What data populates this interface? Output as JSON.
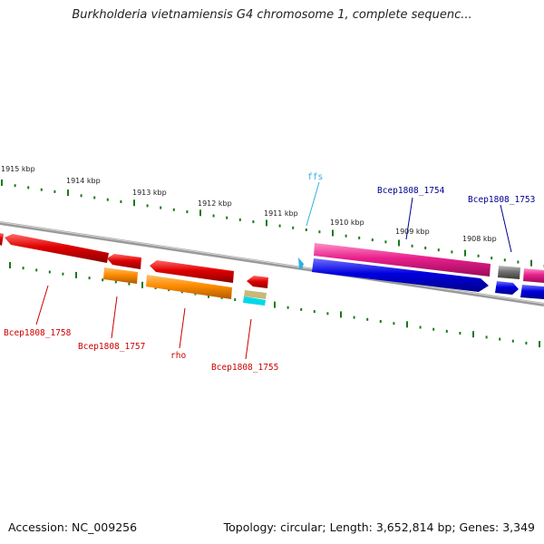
{
  "title": "Burkholderia vietnamiensis G4 chromosome 1, complete sequenc...",
  "footer": {
    "accession": "Accession: NC_009256",
    "summary": "Topology: circular; Length: 3,652,814 bp; Genes: 3,349"
  },
  "ruler": [
    "1915 kbp",
    "1914 kbp",
    "1913 kbp",
    "1912 kbp",
    "1911 kbp",
    "1910 kbp",
    "1909 kbp",
    "1908 kbp"
  ],
  "genes": {
    "ffs": "ffs",
    "g1754": "Bcep1808_1754",
    "g1753": "Bcep1808_1753",
    "g1758": "Bcep1808_1758",
    "g1757": "Bcep1808_1757",
    "rho": "rho",
    "g1755": "Bcep1808_1755"
  },
  "colors": {
    "red": "#e00000",
    "orange": "#ff8c00",
    "pink": "#e8208c",
    "blue": "#0000e0",
    "gray": "#707070",
    "cyan": "#00d8e8",
    "tan": "#c8b87a",
    "ticks": "#1a7a1a",
    "red_label": "#cc0000",
    "blue_label": "#00008b",
    "cyan_label": "#30b0e0"
  }
}
